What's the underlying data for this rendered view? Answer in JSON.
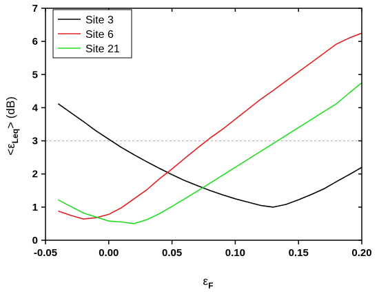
{
  "chart_data": {
    "type": "line",
    "xlabel": {
      "main": "ε",
      "sub": "F"
    },
    "ylabel": {
      "prefix": "<ε",
      "sub": "Leq",
      "suffix": "> (dB)"
    },
    "xlim": [
      -0.05,
      0.2
    ],
    "ylim": [
      0,
      7
    ],
    "x_ticks": [
      -0.05,
      0.0,
      0.05,
      0.1,
      0.15,
      0.2
    ],
    "x_tick_labels": [
      "-0.05",
      "0.00",
      "0.05",
      "0.10",
      "0.15",
      "0.20"
    ],
    "y_ticks": [
      0,
      1,
      2,
      3,
      4,
      5,
      6,
      7
    ],
    "y_tick_labels": [
      "0",
      "1",
      "2",
      "3",
      "4",
      "5",
      "6",
      "7"
    ],
    "grid": false,
    "reference_line": {
      "y": 3,
      "style": "dashed",
      "color": "#aaaaaa"
    },
    "legend": {
      "position": "top-left",
      "boxed": true
    },
    "series": [
      {
        "name": "Site 3",
        "color": "#000000",
        "x": [
          -0.04,
          -0.03,
          -0.02,
          -0.01,
          0.0,
          0.01,
          0.02,
          0.03,
          0.04,
          0.05,
          0.06,
          0.07,
          0.08,
          0.09,
          0.1,
          0.11,
          0.12,
          0.13,
          0.14,
          0.15,
          0.16,
          0.17,
          0.18,
          0.19,
          0.2
        ],
        "values": [
          4.12,
          3.85,
          3.58,
          3.3,
          3.05,
          2.8,
          2.58,
          2.37,
          2.17,
          1.98,
          1.8,
          1.65,
          1.5,
          1.37,
          1.25,
          1.15,
          1.05,
          1.0,
          1.08,
          1.22,
          1.38,
          1.55,
          1.77,
          1.98,
          2.2
        ]
      },
      {
        "name": "Site 6",
        "color": "#e02020",
        "x": [
          -0.04,
          -0.03,
          -0.02,
          -0.01,
          0.0,
          0.01,
          0.02,
          0.03,
          0.04,
          0.05,
          0.06,
          0.07,
          0.08,
          0.09,
          0.1,
          0.11,
          0.12,
          0.13,
          0.14,
          0.15,
          0.16,
          0.17,
          0.18,
          0.19,
          0.2
        ],
        "values": [
          0.88,
          0.75,
          0.64,
          0.68,
          0.78,
          0.98,
          1.25,
          1.52,
          1.85,
          2.15,
          2.47,
          2.78,
          3.08,
          3.35,
          3.65,
          3.95,
          4.25,
          4.52,
          4.8,
          5.08,
          5.36,
          5.64,
          5.92,
          6.1,
          6.25
        ]
      },
      {
        "name": "Site 21",
        "color": "#22dd22",
        "x": [
          -0.04,
          -0.03,
          -0.02,
          -0.01,
          0.0,
          0.01,
          0.02,
          0.03,
          0.04,
          0.05,
          0.06,
          0.07,
          0.08,
          0.09,
          0.1,
          0.11,
          0.12,
          0.13,
          0.14,
          0.15,
          0.16,
          0.17,
          0.18,
          0.19,
          0.2
        ],
        "values": [
          1.22,
          1.02,
          0.82,
          0.7,
          0.58,
          0.55,
          0.5,
          0.62,
          0.8,
          1.02,
          1.25,
          1.48,
          1.72,
          1.96,
          2.2,
          2.44,
          2.68,
          2.92,
          3.16,
          3.4,
          3.64,
          3.88,
          4.12,
          4.44,
          4.75
        ]
      }
    ]
  }
}
